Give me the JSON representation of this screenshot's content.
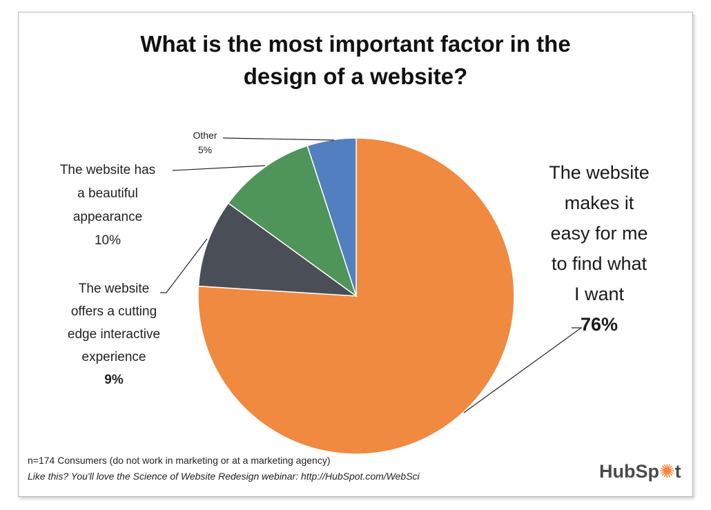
{
  "chart_data": {
    "type": "pie",
    "title": [
      "What is the most important factor in the",
      "design of a website?"
    ],
    "slices": [
      {
        "label": [
          "The website",
          "makes it",
          "easy for me",
          "to find what",
          "I want"
        ],
        "value": 76,
        "pct_label": "76%",
        "color": "#f08a40"
      },
      {
        "label": [
          "The website",
          "offers a cutting",
          "edge interactive",
          "experience"
        ],
        "value": 9,
        "pct_label": "9%",
        "color": "#4a4f57"
      },
      {
        "label": [
          "The website has",
          "a beautiful",
          "appearance"
        ],
        "value": 10,
        "pct_label": "10%",
        "color": "#4f9459"
      },
      {
        "label": [
          "Other"
        ],
        "value": 5,
        "pct_label": "5%",
        "color": "#527fbf"
      }
    ]
  },
  "footer": {
    "sample": "n=174 Consumers (do not work in marketing or at a marketing agency)",
    "promo": "Like this?  You'll love the Science of Website Redesign webinar: http://HubSpot.com/WebSci"
  },
  "logo": {
    "text_before": "HubSp",
    "sprocket": "✺",
    "text_after": "t"
  }
}
